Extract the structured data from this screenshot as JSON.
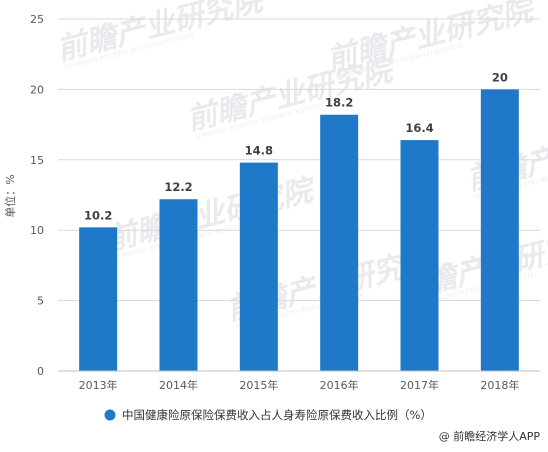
{
  "chart_data": {
    "type": "bar",
    "categories": [
      "2013年",
      "2014年",
      "2015年",
      "2016年",
      "2017年",
      "2018年"
    ],
    "values": [
      10.2,
      12.2,
      14.8,
      18.2,
      16.4,
      20
    ],
    "data_labels": [
      "10.2",
      "12.2",
      "14.8",
      "18.2",
      "16.4",
      "20"
    ],
    "ylabel": "单位：%",
    "ylim": [
      0,
      25
    ],
    "yticks": [
      0,
      5,
      10,
      15,
      20,
      25
    ],
    "ytick_labels": [
      "0",
      "5",
      "10",
      "15",
      "20",
      "25"
    ],
    "grid": true,
    "legend_position": "bottom",
    "series": [
      {
        "name": "中国健康险原保险保费收入占人身寿险原保费收入比例（%）",
        "color": "#1f79c8"
      }
    ]
  },
  "watermark": {
    "text": "前瞻产业研究院",
    "subtext": "QIANZHAN INDUSTRY RESEARCH INSTITUTE"
  },
  "credit": {
    "icon": "at-sign-icon",
    "text": "@ 前瞻经济学人APP"
  },
  "colors": {
    "bar": "#1f79c8",
    "grid": "#d9d9d9",
    "axis": "#bfbfbf"
  }
}
